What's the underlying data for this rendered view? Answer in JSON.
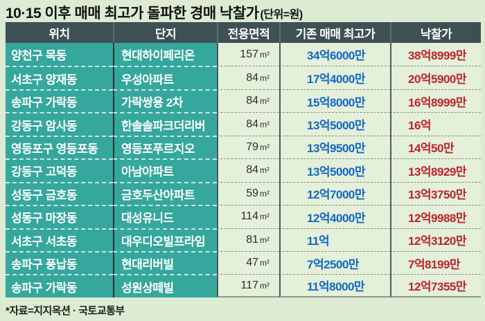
{
  "chart_data": {
    "type": "table",
    "title": "10·15 이후 매매 최고가 돌파한 경매 낙찰가",
    "unit_note": "(단위=원)",
    "columns": [
      "위치",
      "단지",
      "전용면적",
      "기존 매매 최고가",
      "낙찰가"
    ],
    "area_unit": "m²",
    "rows": [
      {
        "location": "양천구 목동",
        "complex": "현대하이페리온",
        "area": "157",
        "prev_high": "34억6000만",
        "winning_bid": "38억8999만"
      },
      {
        "location": "서초구 양재동",
        "complex": "우성아파트",
        "area": "84",
        "prev_high": "17억4000만",
        "winning_bid": "20억5900만"
      },
      {
        "location": "송파구 가락동",
        "complex": "가락쌍용 2차",
        "area": "84",
        "prev_high": "15억8000만",
        "winning_bid": "16억8999만"
      },
      {
        "location": "강동구 암사동",
        "complex": "한솔솔파크더리버",
        "area": "84",
        "prev_high": "13억5000만",
        "winning_bid": "16억"
      },
      {
        "location": "영등포구 영등포동",
        "complex": "영등포푸르지오",
        "area": "79",
        "prev_high": "13억9500만",
        "winning_bid": "14억50만"
      },
      {
        "location": "강동구 고덕동",
        "complex": "아남아파트",
        "area": "84",
        "prev_high": "13억5000만",
        "winning_bid": "13억8929만"
      },
      {
        "location": "성동구 금호동",
        "complex": "금호두산아파트",
        "area": "59",
        "prev_high": "12억7000만",
        "winning_bid": "13억3750만"
      },
      {
        "location": "성동구 마장동",
        "complex": "대성유니드",
        "area": "114",
        "prev_high": "12억4000만",
        "winning_bid": "12억9988만"
      },
      {
        "location": "서초구 서초동",
        "complex": "대우디오빌프라임",
        "area": "81",
        "prev_high": "11억",
        "winning_bid": "12억3120만"
      },
      {
        "location": "송파구 풍납동",
        "complex": "현대리버빌",
        "area": "47",
        "prev_high": "7억2500만",
        "winning_bid": "7억8199만"
      },
      {
        "location": "송파구 가락동",
        "complex": "성원상떼빌",
        "area": "117",
        "prev_high": "11억8000만",
        "winning_bid": "12억7355만"
      }
    ],
    "source": "*자료=지지옥션 · 국토교통부"
  },
  "colors": {
    "page_bg": "#dcebd1",
    "cell_bg": "#e4f0da",
    "teal": "#35a79d",
    "header_bg": "#3f5054",
    "prev_price_blue": "#1268c7",
    "winning_bid_red": "#c0222d"
  }
}
